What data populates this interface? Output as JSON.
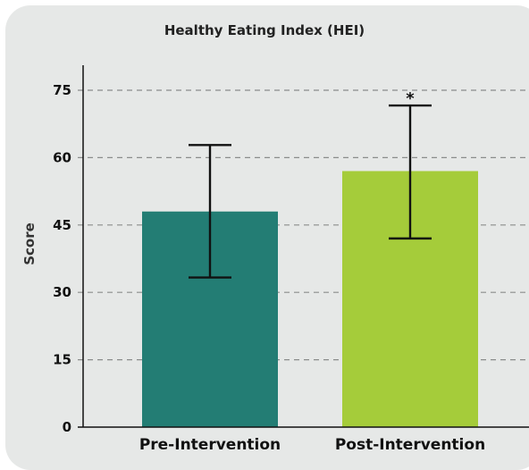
{
  "chart_data": {
    "type": "bar",
    "title": "Healthy Eating Index (HEI)",
    "xlabel": "",
    "ylabel": "Score",
    "categories": [
      "Pre-Intervention",
      "Post-Intervention"
    ],
    "values": [
      48,
      57
    ],
    "error_low": [
      33.3,
      42
    ],
    "error_high": [
      62.8,
      71.6
    ],
    "annotations": [
      "",
      "*"
    ],
    "colors": [
      "#237d74",
      "#a5cc3a"
    ],
    "ylim": [
      0,
      80
    ],
    "yticks": [
      0,
      15,
      30,
      45,
      60,
      75
    ],
    "grid": true,
    "grid_style": "dashed",
    "legend": "none"
  }
}
